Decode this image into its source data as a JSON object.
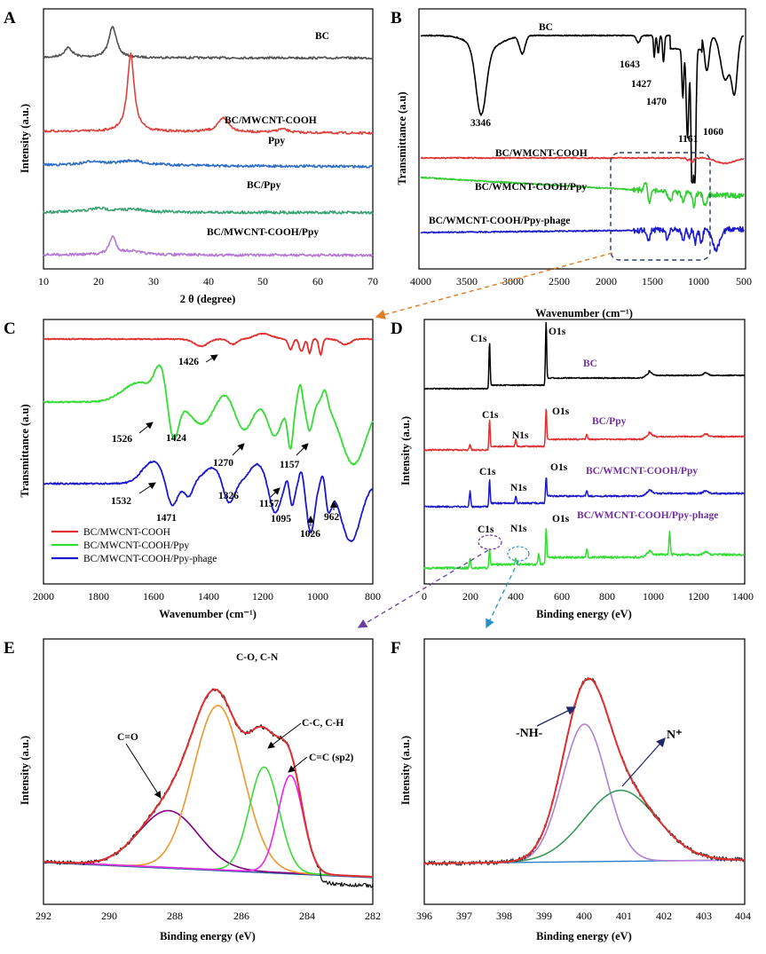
{
  "figure": {
    "panels": [
      {
        "id": "A",
        "type": "line",
        "xlabel": "2 θ (degree)",
        "ylabel": "Intensity (a.u.)",
        "xlim": [
          10,
          70
        ],
        "xticks": [
          "10",
          "20",
          "30",
          "40",
          "50",
          "60",
          "70"
        ],
        "series": [
          {
            "name": "BC",
            "color": "#505050"
          },
          {
            "name": "BC/MWCNT-COOH",
            "color": "#e0413b"
          },
          {
            "name": "Ppy",
            "color": "#2e6ec7"
          },
          {
            "name": "BC/Ppy",
            "color": "#3aa374"
          },
          {
            "name": "BC/MWCNT-COOH/Ppy",
            "color": "#b479d4"
          }
        ],
        "labels": [
          "BC",
          "BC/MWCNT-COOH",
          "Ppy",
          "BC/Ppy",
          "BC/MWCNT-COOH/Ppy"
        ]
      },
      {
        "id": "B",
        "type": "line",
        "xlabel": "Wavenumber (cm⁻¹)",
        "ylabel": "Transmittance (a.u)",
        "xlim": [
          4000,
          500
        ],
        "xticks": [
          "4000",
          "3500",
          "3000",
          "2500",
          "2000",
          "1500",
          "1000",
          "500"
        ],
        "series": [
          {
            "name": "BC",
            "color": "#000000"
          },
          {
            "name": "BC/WMCNT-COOH",
            "color": "#e03030"
          },
          {
            "name": "BC/WMCNT-COOH/Ppy",
            "color": "#33cc33"
          },
          {
            "name": "BC/WMCNT-COOH/Ppy-phage",
            "color": "#1a1acc"
          }
        ],
        "peaks": [
          "3346",
          "1643",
          "1427",
          "1470",
          "1161",
          "1060"
        ]
      },
      {
        "id": "C",
        "type": "line",
        "xlabel": "Wavenumber (cm⁻¹)",
        "ylabel": "Transmittance (a.u)",
        "xlim": [
          2000,
          800
        ],
        "xticks": [
          "2000",
          "1800",
          "1600",
          "1400",
          "1200",
          "1000",
          "800"
        ],
        "legend": [
          "BC/MWCNT-COOH",
          "BC/MWCNT-COOH/Ppy",
          "BC/MWCNT-COOH/Ppy-phage"
        ],
        "peaks": [
          "1426",
          "1526",
          "1424",
          "1270",
          "1157",
          "1532",
          "1471",
          "1326",
          "1157",
          "1095",
          "1026",
          "962"
        ]
      },
      {
        "id": "D",
        "type": "line",
        "xlabel": "Binding energy (eV)",
        "ylabel": "Intensity (a.u.)",
        "xlim": [
          0,
          1400
        ],
        "xticks": [
          "0",
          "200",
          "400",
          "600",
          "800",
          "1000",
          "1200",
          "1400"
        ],
        "series": [
          "BC",
          "BC/Ppy",
          "BC/WMCNT-COOH/Ppy",
          "BC/WMCNT-COOH/Ppy-phage"
        ],
        "peak_labels": [
          "C1s",
          "O1s",
          "C1s",
          "N1s",
          "O1s",
          "C1s",
          "N1s",
          "O1s",
          "C1s",
          "N1s",
          "O1s"
        ]
      },
      {
        "id": "E",
        "type": "line",
        "xlabel": "Binding energy (eV)",
        "ylabel": "Intensity (a.u.)",
        "xlim": [
          292,
          282
        ],
        "xticks": [
          "292",
          "290",
          "288",
          "286",
          "284",
          "282"
        ],
        "components": [
          {
            "name": "C=O",
            "center": 288.2,
            "color": "#800080"
          },
          {
            "name": "C-O, C-N",
            "center": 286.7,
            "color": "#f0962a"
          },
          {
            "name": "C-C, C-H",
            "center": 285.3,
            "color": "#33dd33"
          },
          {
            "name": "C=C (sp2)",
            "center": 284.5,
            "color": "#ee22ee"
          }
        ],
        "annotations": [
          "C=O",
          "C-O, C-N",
          "C-C, C-H",
          "C=C (sp2)"
        ]
      },
      {
        "id": "F",
        "type": "line",
        "xlabel": "Binding energy (eV)",
        "ylabel": "Intensity (a.u.)",
        "xlim": [
          396,
          404
        ],
        "xticks": [
          "396",
          "397",
          "398",
          "399",
          "400",
          "401",
          "402",
          "403",
          "404"
        ],
        "components": [
          {
            "name": "-NH-",
            "center": 400.0,
            "color": "#b07fd6"
          },
          {
            "name": "N+",
            "center": 400.9,
            "color": "#3a9a5a"
          }
        ],
        "annotations": [
          "-NH-",
          "N⁺"
        ]
      }
    ]
  }
}
